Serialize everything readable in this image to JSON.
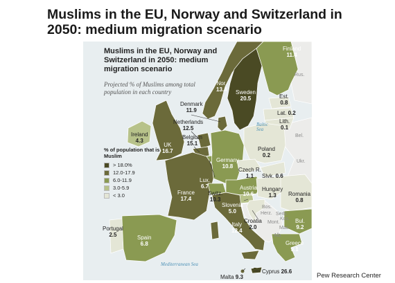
{
  "page_title": "Muslims in the EU, Norway and Switzerland in 2050: medium migration scenario",
  "inset_title": "Muslims in the EU, Norway and Switzerland in 2050: medium migration scenario",
  "subtitle": "Projected % of Muslims among total population in each country",
  "legend": {
    "title": "% of population that is Muslim",
    "items": [
      {
        "label": "> 18.0%",
        "color": "#4a4a24"
      },
      {
        "label": "12.0-17.9",
        "color": "#6b6a3a"
      },
      {
        "label": "6.0-11.9",
        "color": "#8a9a52"
      },
      {
        "label": "3.0-5.9",
        "color": "#b7c28a"
      },
      {
        "label": "< 3.0",
        "color": "#e4e6d6"
      }
    ]
  },
  "countries": {
    "finland": {
      "name": "Finland",
      "value": "11.4"
    },
    "norway": {
      "name": "Nor.",
      "value": "13.4"
    },
    "sweden": {
      "name": "Sweden",
      "value": "20.5"
    },
    "estonia": {
      "name": "Est.",
      "value": "0.8"
    },
    "latvia": {
      "name": "Lat.",
      "value": "0.2"
    },
    "lithuania": {
      "name": "Lith.",
      "value": "0.1"
    },
    "denmark": {
      "name": "Denmark",
      "value": "11.9"
    },
    "netherlands": {
      "name": "Netherlands",
      "value": "12.5"
    },
    "belgium": {
      "name": "Belgium",
      "value": "15.1"
    },
    "ireland": {
      "name": "Ireland",
      "value": "4.3"
    },
    "uk": {
      "name": "UK",
      "value": "16.7"
    },
    "germany": {
      "name": "Germany",
      "value": "10.8"
    },
    "poland": {
      "name": "Poland",
      "value": "0.2"
    },
    "czech": {
      "name": "Czech R.",
      "value": "1.1"
    },
    "slovakia": {
      "name": "Slvk.",
      "value": "0.6"
    },
    "luxembourg": {
      "name": "Lux.",
      "value": "6.7"
    },
    "france": {
      "name": "France",
      "value": "17.4"
    },
    "switzerland": {
      "name": "Switz.",
      "value": "10.3"
    },
    "austria": {
      "name": "Austria",
      "value": "10.6"
    },
    "hungary": {
      "name": "Hungary",
      "value": "1.3"
    },
    "romania": {
      "name": "Romania",
      "value": "0.8"
    },
    "slovenia": {
      "name": "Slovenia",
      "value": "5.0"
    },
    "croatia": {
      "name": "Croatia",
      "value": "2.0"
    },
    "italy": {
      "name": "Italy",
      "value": "12.4"
    },
    "bulgaria": {
      "name": "Bul.",
      "value": "9.2"
    },
    "portugal": {
      "name": "Portugal",
      "value": "2.5"
    },
    "spain": {
      "name": "Spain",
      "value": "6.8"
    },
    "greece": {
      "name": "Greece",
      "value": "9.1"
    },
    "cyprus": {
      "name": "Cyprus",
      "value": "26.6"
    },
    "malta": {
      "name": "Malta",
      "value": "9.3"
    }
  },
  "non_eu_labels": {
    "rus": "Rus.",
    "bel": "Bel.",
    "ukr": "Ukr.",
    "bos": "Bos.",
    "herz": "Herz.",
    "serb": "Serb.",
    "mont": "Mont.",
    "mac": "Mac.",
    "alb": "Alb.",
    "kos": "Kos."
  },
  "seas": {
    "baltic": "Baltic Sea",
    "mediterranean": "Mediterranean Sea"
  },
  "source": "Pew Research Center"
}
